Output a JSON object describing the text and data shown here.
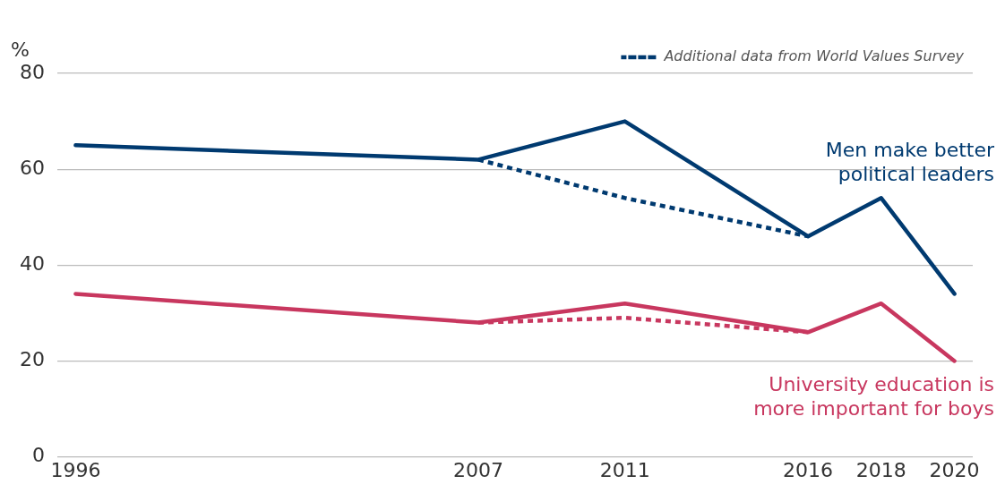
{
  "chart_data": {
    "type": "line",
    "ylabel": "%",
    "xlim": [
      1995.5,
      2020.5
    ],
    "xticks": [
      1996,
      2007,
      2011,
      2016,
      2018,
      2020
    ],
    "ylim": [
      0,
      80
    ],
    "yticks": [
      0,
      20,
      40,
      60,
      80
    ],
    "grid": "y",
    "legend": "top right",
    "marker": "none",
    "series": [
      {
        "name": "Men make better political leaders",
        "color": "#003a70",
        "x": [
          1996,
          2007,
          2011,
          2016,
          2018,
          2020
        ],
        "values": [
          65,
          62,
          70,
          46,
          54,
          34
        ],
        "line_style": "solid"
      },
      {
        "name": "University education is more important for boys",
        "color": "#c8375f",
        "x": [
          1996,
          2007,
          2011,
          2016,
          2018,
          2020
        ],
        "values": [
          34,
          28,
          32,
          26,
          32,
          20
        ],
        "line_style": "solid"
      },
      {
        "name": "Additional data from World Values Survey",
        "color": "#003a70",
        "x": [
          2007,
          2011,
          2016
        ],
        "values": [
          62,
          54,
          46
        ],
        "line_style": "dotted"
      },
      {
        "color": "#c8375f",
        "x": [
          2007,
          2011,
          2016
        ],
        "values": [
          28,
          29,
          26
        ],
        "line_style": "dotted"
      }
    ]
  }
}
